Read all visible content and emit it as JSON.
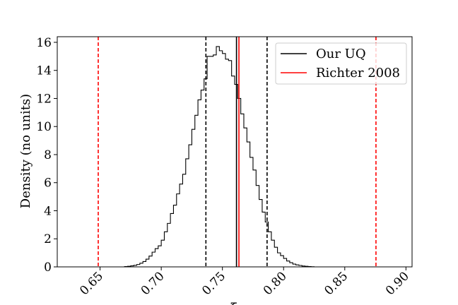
{
  "chart_data": {
    "type": "histogram",
    "xlabel": "ξ",
    "ylabel": "Density (no units)",
    "xlim": [
      0.615,
      0.905
    ],
    "ylim": [
      0,
      16.4
    ],
    "x_ticks": [
      "0.65",
      "0.70",
      "0.75",
      "0.80",
      "0.85",
      "0.90"
    ],
    "y_ticks": [
      "0",
      "2",
      "4",
      "6",
      "8",
      "10",
      "12",
      "14",
      "16"
    ],
    "bins": {
      "start": 0.67,
      "width": 0.0025,
      "density": [
        0.02,
        0.04,
        0.07,
        0.11,
        0.17,
        0.26,
        0.38,
        0.55,
        0.77,
        1.05,
        1.3,
        1.5,
        1.9,
        2.5,
        3.1,
        3.8,
        4.4,
        5.2,
        5.9,
        6.6,
        7.7,
        8.7,
        9.8,
        10.8,
        11.9,
        12.6,
        13.4,
        15.0,
        15.0,
        15.1,
        15.7,
        15.4,
        15.2,
        14.8,
        14.7,
        13.6,
        13.0,
        12.0,
        10.9,
        9.9,
        8.9,
        7.8,
        6.9,
        5.8,
        4.8,
        3.9,
        3.2,
        2.5,
        1.9,
        1.4,
        1.0,
        0.8,
        0.6,
        0.42,
        0.3,
        0.2,
        0.14,
        0.1,
        0.06,
        0.04,
        0.02,
        0.01
      ]
    },
    "series": [
      {
        "name": "Our UQ",
        "color": "#000000",
        "center": 0.7615,
        "interval": [
          0.7365,
          0.7865
        ]
      },
      {
        "name": "Richter 2008",
        "color": "#ff0000",
        "center": 0.7635,
        "interval": [
          0.6485,
          0.8755
        ]
      }
    ],
    "legend": {
      "position": "top-right"
    },
    "grid": false
  }
}
